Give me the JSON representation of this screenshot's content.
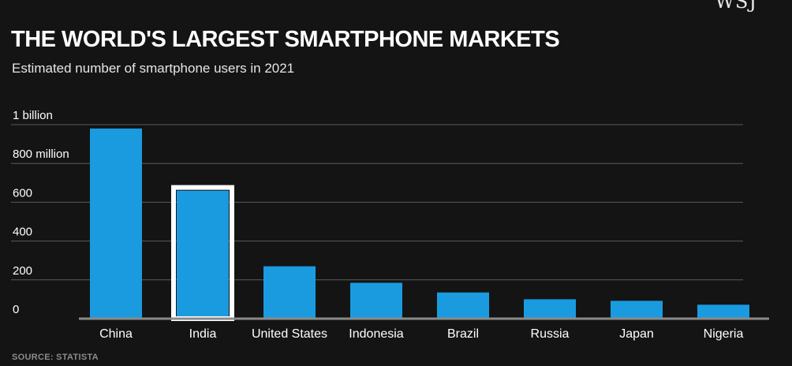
{
  "brand": {
    "logo_text": "WSJ"
  },
  "chart_data": {
    "type": "bar",
    "title": "THE WORLD'S LARGEST SMARTPHONE MARKETS",
    "subtitle": "Estimated number of smartphone users in 2021",
    "source": "SOURCE: STATISTA",
    "categories": [
      "China",
      "India",
      "United States",
      "Indonesia",
      "Brazil",
      "Russia",
      "Japan",
      "Nigeria"
    ],
    "values": [
      980,
      660,
      270,
      185,
      135,
      100,
      92,
      72
    ],
    "highlighted": "India",
    "ylim": [
      0,
      1000
    ],
    "yticks": [
      {
        "value": 0,
        "label": "0"
      },
      {
        "value": 200,
        "label": "200"
      },
      {
        "value": 400,
        "label": "400"
      },
      {
        "value": 600,
        "label": "600"
      },
      {
        "value": 800,
        "label": "800 million"
      },
      {
        "value": 1000,
        "label": "1 billion"
      }
    ],
    "grid": true,
    "colors": {
      "bar": "#1a9be0",
      "grid": "#5a5a5a",
      "highlight_outline": "#ffffff",
      "background": "#141414"
    }
  }
}
